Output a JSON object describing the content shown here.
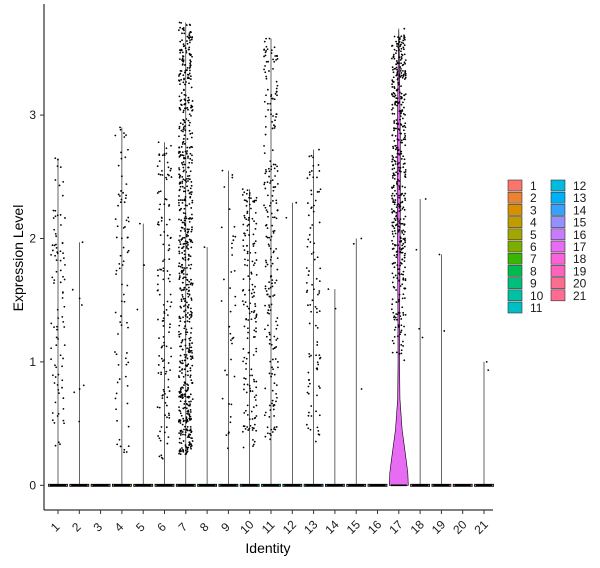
{
  "chart_data": {
    "type": "violin",
    "xlabel": "Identity",
    "ylabel": "Expression Level",
    "ylim": [
      -0.2,
      3.9
    ],
    "yticks": [
      0,
      1,
      2,
      3
    ],
    "grid": false,
    "legend_position": "right",
    "categories": [
      "1",
      "2",
      "3",
      "4",
      "5",
      "6",
      "7",
      "8",
      "9",
      "10",
      "11",
      "12",
      "13",
      "14",
      "15",
      "16",
      "17",
      "18",
      "19",
      "20",
      "21"
    ],
    "colors": [
      "#F8766D",
      "#EB8335",
      "#D89000",
      "#BF9C00",
      "#A3A500",
      "#7CAE00",
      "#39B600",
      "#00BB4E",
      "#00BF7D",
      "#00C1A3",
      "#00BFC4",
      "#00BAE0",
      "#00B0F6",
      "#35A2FF",
      "#9590FF",
      "#C77CFF",
      "#E76BF3",
      "#FA62DB",
      "#FF62BC",
      "#FF6C91",
      "#FF6C91"
    ],
    "series": [
      {
        "name": "1",
        "max": 2.65,
        "nonzero_count": 90,
        "range": [
          0.3,
          2.65
        ]
      },
      {
        "name": "2",
        "max": 1.97,
        "nonzero_count": 8,
        "range": [
          0.3,
          1.97
        ]
      },
      {
        "name": "3",
        "max": 0,
        "nonzero_count": 0,
        "range": [
          0,
          0
        ]
      },
      {
        "name": "4",
        "max": 2.9,
        "nonzero_count": 80,
        "range": [
          0.2,
          2.9
        ]
      },
      {
        "name": "5",
        "max": 2.12,
        "nonzero_count": 3,
        "range": [
          1.3,
          2.12
        ]
      },
      {
        "name": "6",
        "max": 2.78,
        "nonzero_count": 140,
        "range": [
          0.2,
          2.78
        ]
      },
      {
        "name": "7",
        "max": 3.75,
        "nonzero_count": 700,
        "range": [
          0.25,
          3.75
        ]
      },
      {
        "name": "8",
        "max": 1.93,
        "nonzero_count": 1,
        "range": [
          1.93,
          1.93
        ]
      },
      {
        "name": "9",
        "max": 2.55,
        "nonzero_count": 40,
        "range": [
          0.3,
          2.55
        ]
      },
      {
        "name": "10",
        "max": 2.4,
        "nonzero_count": 170,
        "range": [
          0.3,
          2.4
        ]
      },
      {
        "name": "11",
        "max": 3.62,
        "nonzero_count": 230,
        "range": [
          0.35,
          3.62
        ]
      },
      {
        "name": "12",
        "max": 2.29,
        "nonzero_count": 2,
        "range": [
          2.0,
          2.29
        ]
      },
      {
        "name": "13",
        "max": 2.72,
        "nonzero_count": 100,
        "range": [
          0.35,
          2.72
        ]
      },
      {
        "name": "14",
        "max": 1.59,
        "nonzero_count": 2,
        "range": [
          1.4,
          1.59
        ]
      },
      {
        "name": "15",
        "max": 2.0,
        "nonzero_count": 3,
        "range": [
          0.6,
          2.0
        ]
      },
      {
        "name": "16",
        "max": 0,
        "nonzero_count": 0,
        "range": [
          0,
          0
        ]
      },
      {
        "name": "17",
        "max": 3.7,
        "nonzero_count": 480,
        "range": [
          1.0,
          3.7
        ]
      },
      {
        "name": "18",
        "max": 2.32,
        "nonzero_count": 4,
        "range": [
          0.5,
          2.32
        ]
      },
      {
        "name": "19",
        "max": 1.87,
        "nonzero_count": 2,
        "range": [
          1.22,
          1.87
        ]
      },
      {
        "name": "20",
        "max": 0,
        "nonzero_count": 0,
        "range": [
          0,
          0
        ]
      },
      {
        "name": "21",
        "max": 1.0,
        "nonzero_count": 2,
        "range": [
          0.9,
          1.0
        ]
      }
    ]
  }
}
